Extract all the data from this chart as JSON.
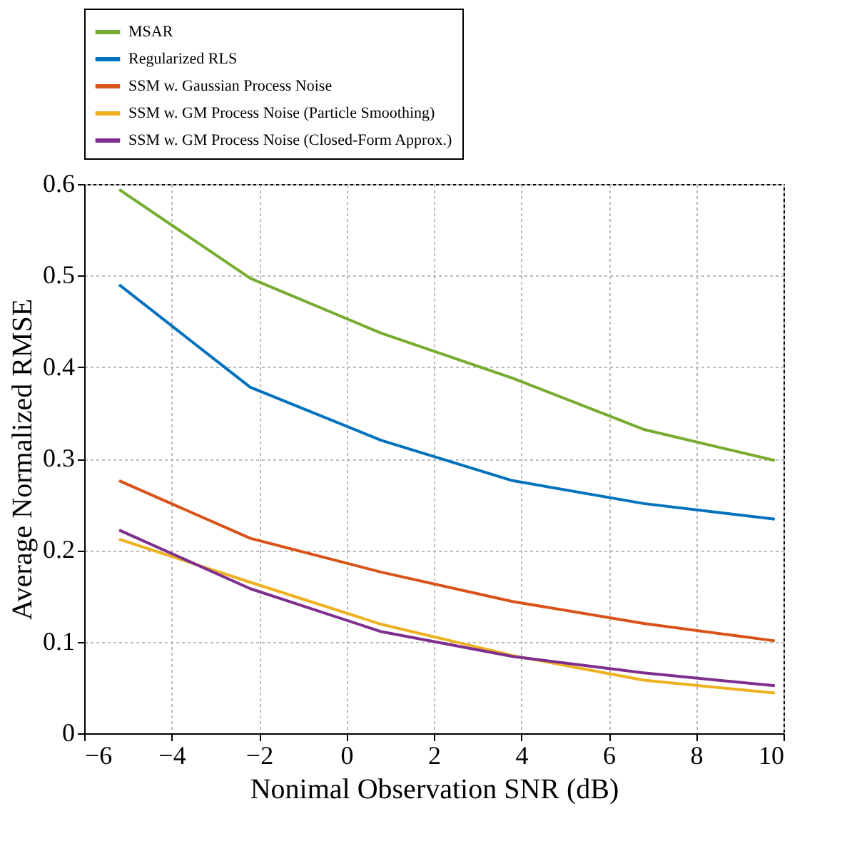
{
  "chart_data": {
    "type": "line",
    "xlabel": "Nonimal Observation SNR (dB)",
    "ylabel": "Average Normalized RMSE",
    "x": [
      -5.2,
      -2.2,
      0.8,
      3.8,
      6.8,
      9.8
    ],
    "series": [
      {
        "name": "MSAR",
        "color": "#77ac30",
        "values": [
          0.594,
          0.497,
          0.437,
          0.388,
          0.332,
          0.298
        ]
      },
      {
        "name": "Regularized RLS",
        "color": "#0072bd",
        "values": [
          0.49,
          0.378,
          0.32,
          0.276,
          0.251,
          0.234
        ]
      },
      {
        "name": "SSM w. Gaussian Process Noise",
        "color": "#d95319",
        "values": [
          0.276,
          0.213,
          0.176,
          0.144,
          0.12,
          0.101
        ]
      },
      {
        "name": "SSM w. GM Process Noise (Particle Smoothing)",
        "color": "#edb120",
        "values": [
          0.212,
          0.165,
          0.119,
          0.085,
          0.058,
          0.044
        ]
      },
      {
        "name": "SSM w. GM Process Noise (Closed-Form Approx.)",
        "color": "#7e2f8e",
        "values": [
          0.222,
          0.158,
          0.111,
          0.084,
          0.066,
          0.052
        ]
      }
    ],
    "xlim": [
      -6,
      10
    ],
    "xticks": [
      -6,
      -4,
      -2,
      0,
      2,
      4,
      6,
      8,
      10
    ],
    "ylim": [
      0,
      0.6
    ],
    "yticks": [
      0,
      0.1,
      0.2,
      0.3,
      0.4,
      0.5,
      0.6
    ],
    "grid": true,
    "legend": "top",
    "marker": "none",
    "line_style": "solid"
  }
}
